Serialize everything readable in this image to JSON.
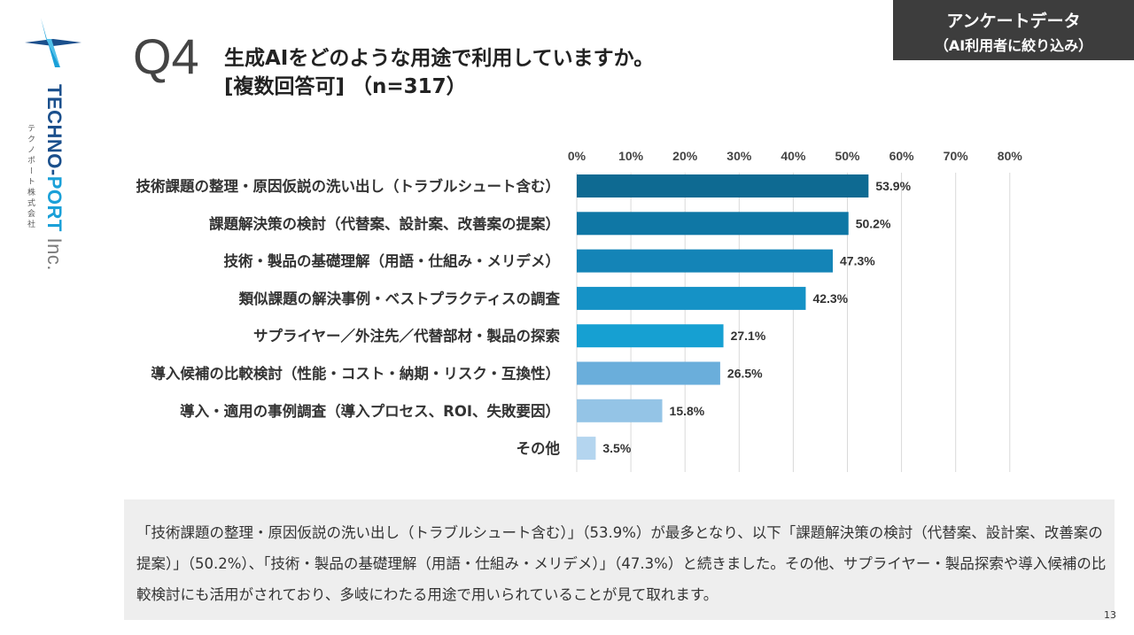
{
  "brand": {
    "name_part1": "TECHNO-",
    "name_part2": "PORT",
    "name_part3": " Inc.",
    "sub": "テクノポート株式会社",
    "logo_icon": "compass-star-icon",
    "colors": {
      "primary": "#1a4f8c",
      "accent": "#1aa0d8"
    }
  },
  "header": {
    "question_number": "Q4",
    "title_line1": "生成AIをどのような用途で利用していますか。",
    "title_line2": "[複数回答可] （n=317）"
  },
  "tag": {
    "line1": "アンケートデータ",
    "line2": "（AI利用者に絞り込み）"
  },
  "chart_data": {
    "type": "bar",
    "orientation": "horizontal",
    "title": "",
    "xlabel": "",
    "ylabel": "",
    "xlim": [
      0,
      80
    ],
    "x_ticks": [
      "0%",
      "10%",
      "20%",
      "30%",
      "40%",
      "50%",
      "60%",
      "70%",
      "80%"
    ],
    "x_axis_position": "top",
    "grid": true,
    "categories": [
      "技術課題の整理・原因仮説の洗い出し（トラブルシュート含む）",
      "課題解決策の検討（代替案、設計案、改善案の提案）",
      "技術・製品の基礎理解（用語・仕組み・メリデメ）",
      "類似課題の解決事例・ベストプラクティスの調査",
      "サプライヤー／外注先／代替部材・製品の探索",
      "導入候補の比較検討（性能・コスト・納期・リスク・互換性）",
      "導入・適用の事例調査（導入プロセス、ROI、失敗要因）",
      "その他"
    ],
    "values": [
      53.9,
      50.2,
      47.3,
      42.3,
      27.1,
      26.5,
      15.8,
      3.5
    ],
    "data_labels": [
      "53.9%",
      "50.2%",
      "47.3%",
      "42.3%",
      "27.1%",
      "26.5%",
      "15.8%",
      "3.5%"
    ],
    "bar_colors": [
      "#0e6a92",
      "#0f77a5",
      "#1484b7",
      "#1592c6",
      "#16a0d2",
      "#6aaedb",
      "#94c4e6",
      "#b4d5ef"
    ]
  },
  "summary": {
    "text": "「技術課題の整理・原因仮説の洗い出し（トラブルシュート含む）」（53.9%）が最多となり、以下「課題解決策の検討（代替案、設計案、改善案の提案）」（50.2%）、「技術・製品の基礎理解（用語・仕組み・メリデメ）」（47.3%）と続きました。その他、サプライヤー・製品探索や導入候補の比較検討にも活用がされており、多岐にわたる用途で用いられていることが見て取れます。"
  },
  "page_number": "13"
}
